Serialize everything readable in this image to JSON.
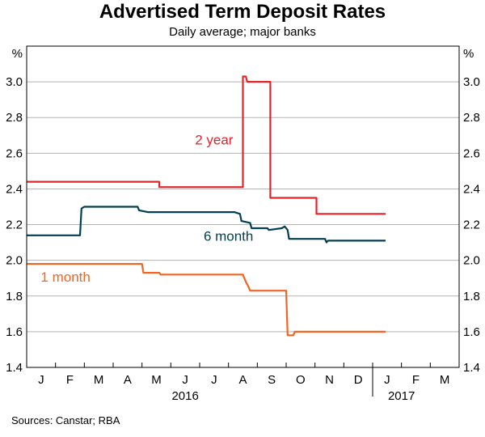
{
  "title": "Advertised Term Deposit Rates",
  "subtitle": "Daily average; major banks",
  "source": "Sources:   Canstar; RBA",
  "chart_data": {
    "type": "line",
    "title": "Advertised Term Deposit Rates",
    "subtitle": "Daily average; major banks",
    "y_unit_left": "%",
    "y_unit_right": "%",
    "ylim": [
      1.4,
      3.2
    ],
    "yticks": [
      1.4,
      1.6,
      1.8,
      2.0,
      2.2,
      2.4,
      2.6,
      2.8,
      3.0
    ],
    "xlim": [
      0,
      15
    ],
    "month_labels": [
      "J",
      "F",
      "M",
      "A",
      "M",
      "J",
      "J",
      "A",
      "S",
      "O",
      "N",
      "D",
      "J",
      "F",
      "M"
    ],
    "year_labels": [
      {
        "label": "2016",
        "at_month_index": 5.5
      },
      {
        "label": "2017",
        "at_month_index": 13
      }
    ],
    "grid": true,
    "series": [
      {
        "name": "2 year",
        "color": "#e3242b",
        "label_pos": {
          "x": 6.5,
          "y": 2.65
        },
        "points": [
          [
            0.0,
            2.44
          ],
          [
            4.6,
            2.44
          ],
          [
            4.6,
            2.41
          ],
          [
            7.5,
            2.41
          ],
          [
            7.5,
            3.03
          ],
          [
            7.6,
            3.03
          ],
          [
            7.65,
            3.0
          ],
          [
            8.45,
            3.0
          ],
          [
            8.45,
            2.35
          ],
          [
            10.05,
            2.35
          ],
          [
            10.05,
            2.26
          ],
          [
            12.45,
            2.26
          ]
        ]
      },
      {
        "name": "6 month",
        "color": "#003f52",
        "label_pos": {
          "x": 7.0,
          "y": 2.11
        },
        "points": [
          [
            0.0,
            2.14
          ],
          [
            1.85,
            2.14
          ],
          [
            1.9,
            2.29
          ],
          [
            2.0,
            2.3
          ],
          [
            3.5,
            2.3
          ],
          [
            3.85,
            2.3
          ],
          [
            3.9,
            2.28
          ],
          [
            4.2,
            2.27
          ],
          [
            7.2,
            2.27
          ],
          [
            7.4,
            2.26
          ],
          [
            7.45,
            2.22
          ],
          [
            7.75,
            2.21
          ],
          [
            7.8,
            2.18
          ],
          [
            8.35,
            2.18
          ],
          [
            8.4,
            2.17
          ],
          [
            8.85,
            2.18
          ],
          [
            8.95,
            2.19
          ],
          [
            9.05,
            2.17
          ],
          [
            9.1,
            2.12
          ],
          [
            10.35,
            2.12
          ],
          [
            10.4,
            2.1
          ],
          [
            10.45,
            2.11
          ],
          [
            12.45,
            2.11
          ]
        ]
      },
      {
        "name": "1 month",
        "color": "#f26522",
        "label_pos": {
          "x": 1.35,
          "y": 1.88
        },
        "points": [
          [
            0.0,
            1.98
          ],
          [
            4.0,
            1.98
          ],
          [
            4.05,
            1.93
          ],
          [
            4.6,
            1.93
          ],
          [
            4.65,
            1.92
          ],
          [
            7.5,
            1.92
          ],
          [
            7.6,
            1.88
          ],
          [
            7.7,
            1.85
          ],
          [
            7.75,
            1.83
          ],
          [
            9.0,
            1.83
          ],
          [
            9.05,
            1.58
          ],
          [
            9.25,
            1.58
          ],
          [
            9.3,
            1.6
          ],
          [
            12.45,
            1.6
          ]
        ]
      }
    ]
  }
}
